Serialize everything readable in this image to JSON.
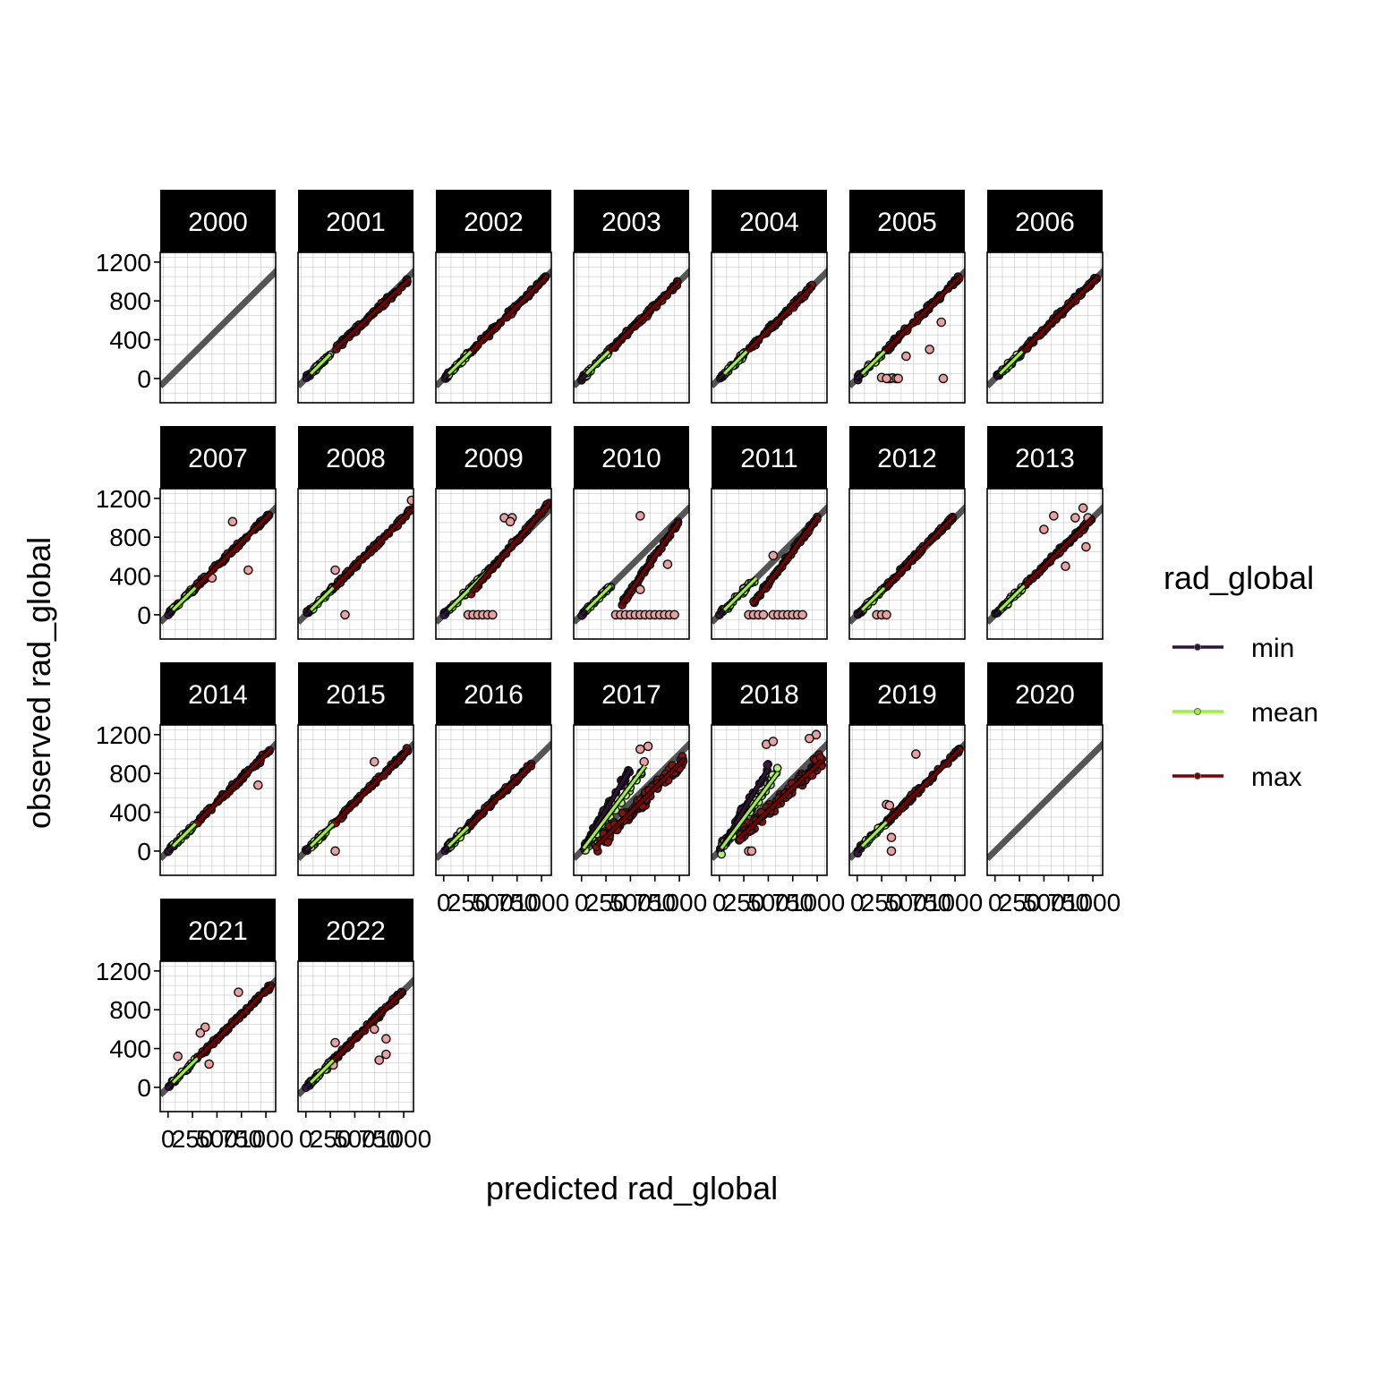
{
  "chart_data": {
    "type": "scatter",
    "xlabel": "predicted rad_global",
    "ylabel": "observed rad_global",
    "x_ticks": [
      0,
      250,
      500,
      750,
      1000
    ],
    "y_ticks": [
      0,
      400,
      800,
      1200
    ],
    "xlim": [
      -80,
      1100
    ],
    "ylim": [
      -250,
      1300
    ],
    "grid": "on",
    "reference_line": "identity (y = x)",
    "legend": {
      "title": "rad_global",
      "position": "right",
      "entries": [
        {
          "key": "min",
          "label": "min",
          "color": "#2d1436"
        },
        {
          "key": "mean",
          "label": "mean",
          "color": "#9ef03a"
        },
        {
          "key": "max",
          "label": "max",
          "color": "#7a0000"
        }
      ]
    },
    "panels": [
      {
        "year": "2000",
        "data": false
      },
      {
        "year": "2001",
        "data": true,
        "min_x": [
          0,
          50
        ],
        "mean_x": [
          50,
          250
        ],
        "max_x": [
          300,
          1050
        ],
        "max_fit": [
          0.95,
          20
        ]
      },
      {
        "year": "2002",
        "data": true,
        "min_x": [
          0,
          50
        ],
        "mean_x": [
          50,
          280
        ],
        "max_x": [
          280,
          1050
        ],
        "max_fit": [
          1.0,
          0
        ]
      },
      {
        "year": "2003",
        "data": true,
        "min_x": [
          0,
          50
        ],
        "mean_x": [
          50,
          280
        ],
        "max_x": [
          280,
          1000
        ],
        "max_fit": [
          1.0,
          0
        ]
      },
      {
        "year": "2004",
        "data": true,
        "min_x": [
          0,
          50
        ],
        "mean_x": [
          50,
          280
        ],
        "max_x": [
          280,
          950
        ],
        "max_fit": [
          1.0,
          0
        ]
      },
      {
        "year": "2005",
        "data": true,
        "min_x": [
          0,
          50
        ],
        "mean_x": [
          50,
          450
        ],
        "max_x": [
          280,
          1050
        ],
        "max_fit": [
          1.0,
          0
        ],
        "extra": [
          [
            320,
            0
          ],
          [
            340,
            0
          ],
          [
            360,
            5
          ],
          [
            400,
            0
          ],
          [
            420,
            0
          ],
          [
            880,
            0
          ],
          [
            250,
            10
          ],
          [
            300,
            0
          ],
          [
            740,
            300
          ],
          [
            860,
            580
          ],
          [
            500,
            230
          ]
        ]
      },
      {
        "year": "2006",
        "data": true,
        "min_x": [
          0,
          50
        ],
        "mean_x": [
          50,
          280
        ],
        "max_x": [
          280,
          1050
        ],
        "max_fit": [
          1.0,
          0
        ]
      },
      {
        "year": "2007",
        "data": true,
        "min_x": [
          0,
          50
        ],
        "mean_x": [
          50,
          280
        ],
        "max_x": [
          280,
          1050
        ],
        "max_fit": [
          1.0,
          0
        ],
        "extra": [
          [
            660,
            960
          ],
          [
            820,
            460
          ],
          [
            450,
            380
          ]
        ]
      },
      {
        "year": "2008",
        "data": true,
        "min_x": [
          0,
          50
        ],
        "mean_x": [
          50,
          400
        ],
        "max_x": [
          280,
          1100
        ],
        "max_fit": [
          1.0,
          0
        ],
        "extra": [
          [
            300,
            460
          ],
          [
            400,
            0
          ],
          [
            1080,
            1180
          ]
        ]
      },
      {
        "year": "2009",
        "data": true,
        "min_x": [
          0,
          50
        ],
        "mean_x": [
          50,
          450
        ],
        "max_x": [
          280,
          1080
        ],
        "max_fit": [
          1.15,
          -90
        ],
        "extra": [
          [
            250,
            0
          ],
          [
            300,
            0
          ],
          [
            350,
            0
          ],
          [
            400,
            0
          ],
          [
            450,
            0
          ],
          [
            500,
            0
          ],
          [
            620,
            1000
          ],
          [
            700,
            1000
          ],
          [
            680,
            960
          ]
        ]
      },
      {
        "year": "2010",
        "data": true,
        "min_x": [
          0,
          50
        ],
        "mean_x": [
          50,
          300
        ],
        "max_x": [
          400,
          1000
        ],
        "max_fit": [
          1.45,
          -480
        ],
        "extra": [
          [
            350,
            0
          ],
          [
            400,
            0
          ],
          [
            450,
            0
          ],
          [
            500,
            0
          ],
          [
            550,
            0
          ],
          [
            600,
            0
          ],
          [
            650,
            0
          ],
          [
            700,
            0
          ],
          [
            750,
            0
          ],
          [
            800,
            0
          ],
          [
            850,
            0
          ],
          [
            900,
            0
          ],
          [
            950,
            0
          ],
          [
            600,
            1020
          ],
          [
            880,
            520
          ],
          [
            600,
            260
          ]
        ]
      },
      {
        "year": "2011",
        "data": true,
        "min_x": [
          0,
          50
        ],
        "mean_x": [
          50,
          380
        ],
        "max_x": [
          350,
          1000
        ],
        "max_fit": [
          1.35,
          -350
        ],
        "extra": [
          [
            300,
            0
          ],
          [
            350,
            0
          ],
          [
            400,
            0
          ],
          [
            450,
            0
          ],
          [
            550,
            0
          ],
          [
            600,
            0
          ],
          [
            650,
            0
          ],
          [
            700,
            0
          ],
          [
            750,
            0
          ],
          [
            800,
            0
          ],
          [
            850,
            0
          ],
          [
            550,
            610
          ]
        ]
      },
      {
        "year": "2012",
        "data": true,
        "min_x": [
          0,
          50
        ],
        "mean_x": [
          50,
          320
        ],
        "max_x": [
          280,
          1000
        ],
        "max_fit": [
          1.05,
          -20
        ],
        "extra": [
          [
            200,
            0
          ],
          [
            250,
            0
          ],
          [
            300,
            0
          ]
        ]
      },
      {
        "year": "2013",
        "data": true,
        "min_x": [
          0,
          50
        ],
        "mean_x": [
          50,
          300
        ],
        "max_x": [
          300,
          1000
        ],
        "max_fit": [
          1.0,
          0
        ],
        "extra": [
          [
            500,
            880
          ],
          [
            600,
            1020
          ],
          [
            900,
            1100
          ],
          [
            950,
            1000
          ],
          [
            930,
            700
          ],
          [
            720,
            500
          ],
          [
            820,
            1000
          ]
        ]
      },
      {
        "year": "2014",
        "data": true,
        "min_x": [
          0,
          50
        ],
        "mean_x": [
          50,
          280
        ],
        "max_x": [
          300,
          1050
        ],
        "max_fit": [
          1.0,
          0
        ],
        "extra": [
          [
            920,
            680
          ]
        ]
      },
      {
        "year": "2015",
        "data": true,
        "min_x": [
          0,
          50
        ],
        "mean_x": [
          50,
          280
        ],
        "max_x": [
          300,
          1050
        ],
        "max_fit": [
          1.0,
          0
        ],
        "extra": [
          [
            700,
            920
          ],
          [
            300,
            0
          ]
        ]
      },
      {
        "year": "2016",
        "data": true,
        "min_x": [
          0,
          50
        ],
        "mean_x": [
          50,
          250
        ],
        "max_x": [
          250,
          900
        ],
        "max_fit": [
          1.0,
          0
        ]
      },
      {
        "year": "2017",
        "data": true,
        "min_x": [
          0,
          500
        ],
        "mean_x": [
          20,
          650
        ],
        "max_x": [
          150,
          1050
        ],
        "max_fit": [
          1.0,
          -100
        ],
        "wide": true,
        "extra": [
          [
            600,
            1050
          ],
          [
            680,
            1080
          ],
          [
            640,
            920
          ]
        ]
      },
      {
        "year": "2018",
        "data": true,
        "min_x": [
          0,
          500
        ],
        "mean_x": [
          20,
          600
        ],
        "max_x": [
          200,
          1050
        ],
        "max_fit": [
          0.95,
          -60
        ],
        "wide": true,
        "extra": [
          [
            480,
            1100
          ],
          [
            550,
            1130
          ],
          [
            300,
            0
          ],
          [
            330,
            0
          ],
          [
            990,
            1200
          ],
          [
            920,
            1160
          ]
        ]
      },
      {
        "year": "2019",
        "data": true,
        "min_x": [
          0,
          50
        ],
        "mean_x": [
          50,
          350
        ],
        "max_x": [
          300,
          1050
        ],
        "max_fit": [
          1.0,
          0
        ],
        "extra": [
          [
            300,
            480
          ],
          [
            330,
            470
          ],
          [
            600,
            1000
          ],
          [
            350,
            0
          ],
          [
            350,
            140
          ]
        ]
      },
      {
        "year": "2020",
        "data": false
      },
      {
        "year": "2021",
        "data": true,
        "min_x": [
          0,
          80
        ],
        "mean_x": [
          50,
          420
        ],
        "max_x": [
          300,
          1050
        ],
        "max_fit": [
          1.0,
          0
        ],
        "extra": [
          [
            380,
            620
          ],
          [
            330,
            560
          ],
          [
            100,
            320
          ],
          [
            420,
            240
          ],
          [
            720,
            980
          ]
        ]
      },
      {
        "year": "2022",
        "data": true,
        "min_x": [
          0,
          50
        ],
        "mean_x": [
          50,
          300
        ],
        "max_x": [
          280,
          1000
        ],
        "max_fit": [
          1.0,
          0
        ],
        "extra": [
          [
            300,
            460
          ],
          [
            700,
            600
          ],
          [
            750,
            280
          ],
          [
            820,
            340
          ],
          [
            820,
            500
          ],
          [
            280,
            230
          ]
        ]
      }
    ]
  }
}
